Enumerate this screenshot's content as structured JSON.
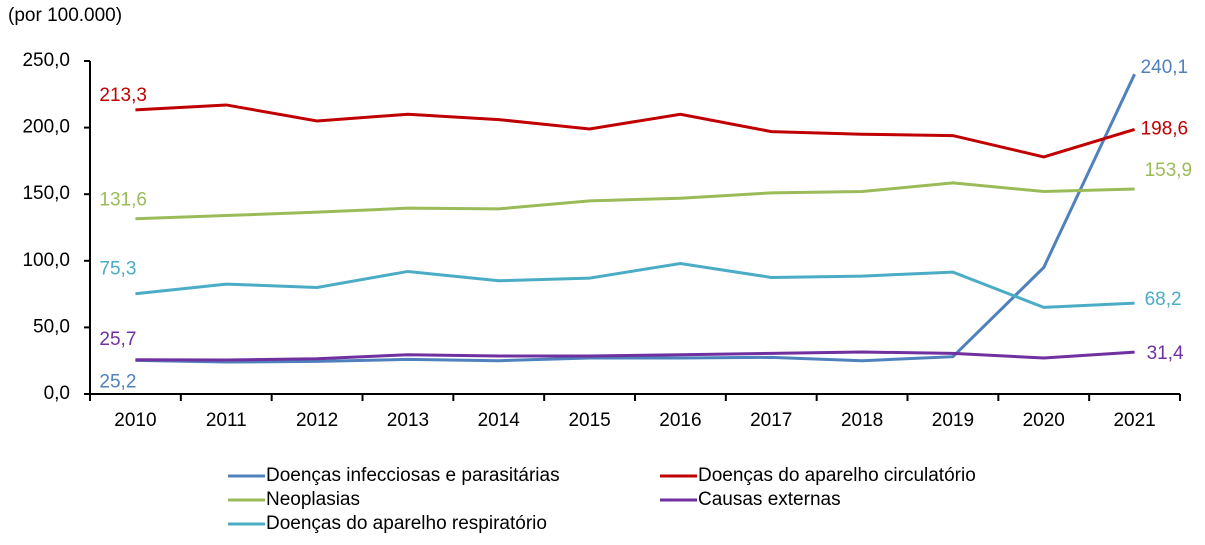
{
  "chart_data": {
    "type": "line",
    "subtitle": "(por 100.000)",
    "categories": [
      "2010",
      "2011",
      "2012",
      "2013",
      "2014",
      "2015",
      "2016",
      "2017",
      "2018",
      "2019",
      "2020",
      "2021"
    ],
    "ylim": [
      0,
      250
    ],
    "yticks": [
      {
        "value": 0,
        "label": "0,0"
      },
      {
        "value": 50,
        "label": "50,0"
      },
      {
        "value": 100,
        "label": "100,0"
      },
      {
        "value": 150,
        "label": "150,0"
      },
      {
        "value": 200,
        "label": "200,0"
      },
      {
        "value": 250,
        "label": "250,0"
      }
    ],
    "series": [
      {
        "name": "Doenças infecciosas e parasitárias",
        "color": "#4f81bd",
        "values": [
          25.2,
          24,
          24.5,
          26,
          25,
          27,
          27,
          27.5,
          25,
          28,
          95,
          240.1
        ],
        "value_labels": [
          "25,2",
          null,
          null,
          null,
          null,
          null,
          null,
          null,
          null,
          null,
          null,
          "240,1"
        ]
      },
      {
        "name": "Doenças do aparelho circulatório",
        "color": "#c00000",
        "values": [
          213.3,
          217,
          205,
          210,
          206,
          199,
          210,
          197,
          195,
          194,
          178,
          198.6
        ],
        "value_labels": [
          "213,3",
          null,
          null,
          null,
          null,
          null,
          null,
          null,
          null,
          null,
          null,
          "198,6"
        ]
      },
      {
        "name": "Neoplasias",
        "color": "#9bbb59",
        "values": [
          131.6,
          134,
          136.5,
          139.5,
          139,
          145,
          147,
          151,
          152,
          158.5,
          152,
          153.9
        ],
        "value_labels": [
          "131,6",
          null,
          null,
          null,
          null,
          null,
          null,
          null,
          null,
          null,
          null,
          "153,9"
        ]
      },
      {
        "name": "Causas externas",
        "color": "#7030a0",
        "values": [
          25.7,
          25.5,
          26.5,
          29.5,
          28.5,
          28.5,
          29.5,
          30.5,
          31.5,
          30.5,
          27,
          31.4
        ],
        "value_labels": [
          "25,7",
          null,
          null,
          null,
          null,
          null,
          null,
          null,
          null,
          null,
          null,
          "31,4"
        ]
      },
      {
        "name": "Doenças do aparelho respiratório",
        "color": "#4bacc6",
        "values": [
          75.3,
          82.5,
          80,
          92,
          85,
          87,
          98,
          87.5,
          88.5,
          91.5,
          65,
          68.2
        ],
        "value_labels": [
          "75,3",
          null,
          null,
          null,
          null,
          null,
          null,
          null,
          null,
          null,
          null,
          "68,2"
        ]
      }
    ]
  }
}
